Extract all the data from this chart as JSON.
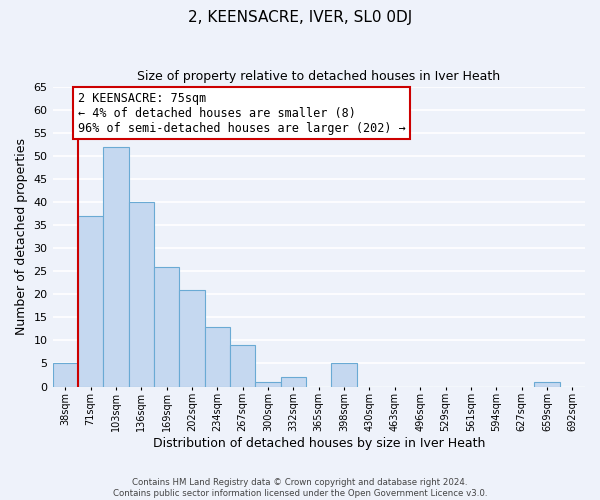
{
  "title": "2, KEENSACRE, IVER, SL0 0DJ",
  "subtitle": "Size of property relative to detached houses in Iver Heath",
  "xlabel": "Distribution of detached houses by size in Iver Heath",
  "ylabel": "Number of detached properties",
  "bar_color": "#c5d8f0",
  "bar_edge_color": "#6aaad4",
  "background_color": "#eef2fa",
  "grid_color": "#ffffff",
  "bin_labels": [
    "38sqm",
    "71sqm",
    "103sqm",
    "136sqm",
    "169sqm",
    "202sqm",
    "234sqm",
    "267sqm",
    "300sqm",
    "332sqm",
    "365sqm",
    "398sqm",
    "430sqm",
    "463sqm",
    "496sqm",
    "529sqm",
    "561sqm",
    "594sqm",
    "627sqm",
    "659sqm",
    "692sqm"
  ],
  "bar_values": [
    5,
    37,
    52,
    40,
    26,
    21,
    13,
    9,
    1,
    2,
    0,
    5,
    0,
    0,
    0,
    0,
    0,
    0,
    0,
    1,
    0
  ],
  "ylim": [
    0,
    65
  ],
  "yticks": [
    0,
    5,
    10,
    15,
    20,
    25,
    30,
    35,
    40,
    45,
    50,
    55,
    60,
    65
  ],
  "property_line_color": "#cc0000",
  "annotation_text": "2 KEENSACRE: 75sqm\n← 4% of detached houses are smaller (8)\n96% of semi-detached houses are larger (202) →",
  "annotation_box_color": "#ffffff",
  "annotation_box_edge": "#cc0000",
  "footer_line1": "Contains HM Land Registry data © Crown copyright and database right 2024.",
  "footer_line2": "Contains public sector information licensed under the Open Government Licence v3.0."
}
